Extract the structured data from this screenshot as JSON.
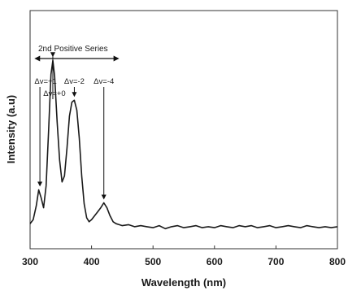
{
  "chart_data": {
    "type": "line",
    "xlabel": "Wavelength (nm)",
    "ylabel": "Intensity (a.u)",
    "xlim": [
      300,
      800
    ],
    "x_ticks": [
      "300",
      "400",
      "500",
      "600",
      "700",
      "800"
    ],
    "y_tick_labels": "none",
    "grid": false,
    "series": [
      {
        "x": [
          300,
          305,
          310,
          314,
          318,
          322,
          326,
          330,
          334,
          337,
          340,
          344,
          348,
          352,
          356,
          360,
          364,
          368,
          372,
          376,
          380,
          384,
          388,
          392,
          396,
          400,
          405,
          410,
          415,
          420,
          425,
          430,
          435,
          440,
          445,
          450,
          460,
          470,
          480,
          490,
          500,
          510,
          520,
          530,
          540,
          550,
          560,
          570,
          580,
          590,
          600,
          610,
          620,
          630,
          640,
          650,
          660,
          670,
          680,
          690,
          700,
          710,
          720,
          730,
          740,
          750,
          760,
          770,
          780,
          790,
          800
        ],
        "y": [
          0.04,
          0.06,
          0.13,
          0.21,
          0.17,
          0.12,
          0.23,
          0.5,
          0.79,
          0.86,
          0.78,
          0.55,
          0.36,
          0.25,
          0.28,
          0.42,
          0.58,
          0.65,
          0.66,
          0.61,
          0.47,
          0.28,
          0.14,
          0.07,
          0.05,
          0.06,
          0.08,
          0.1,
          0.12,
          0.145,
          0.12,
          0.08,
          0.05,
          0.04,
          0.035,
          0.03,
          0.035,
          0.025,
          0.03,
          0.025,
          0.02,
          0.03,
          0.015,
          0.025,
          0.03,
          0.02,
          0.025,
          0.03,
          0.02,
          0.025,
          0.02,
          0.03,
          0.025,
          0.02,
          0.03,
          0.025,
          0.03,
          0.02,
          0.025,
          0.03,
          0.02,
          0.025,
          0.03,
          0.025,
          0.02,
          0.03,
          0.025,
          0.02,
          0.025,
          0.02,
          0.025
        ]
      }
    ],
    "annotations": {
      "series_label": "2nd Positive Series",
      "series_range": [
        307,
        445
      ],
      "peaks": [
        {
          "label": "Δv=+1",
          "x": 316
        },
        {
          "label": "Δv=+0",
          "x": 337
        },
        {
          "label": "Δv=-2",
          "x": 372
        },
        {
          "label": "Δv=-4",
          "x": 420
        }
      ]
    }
  }
}
